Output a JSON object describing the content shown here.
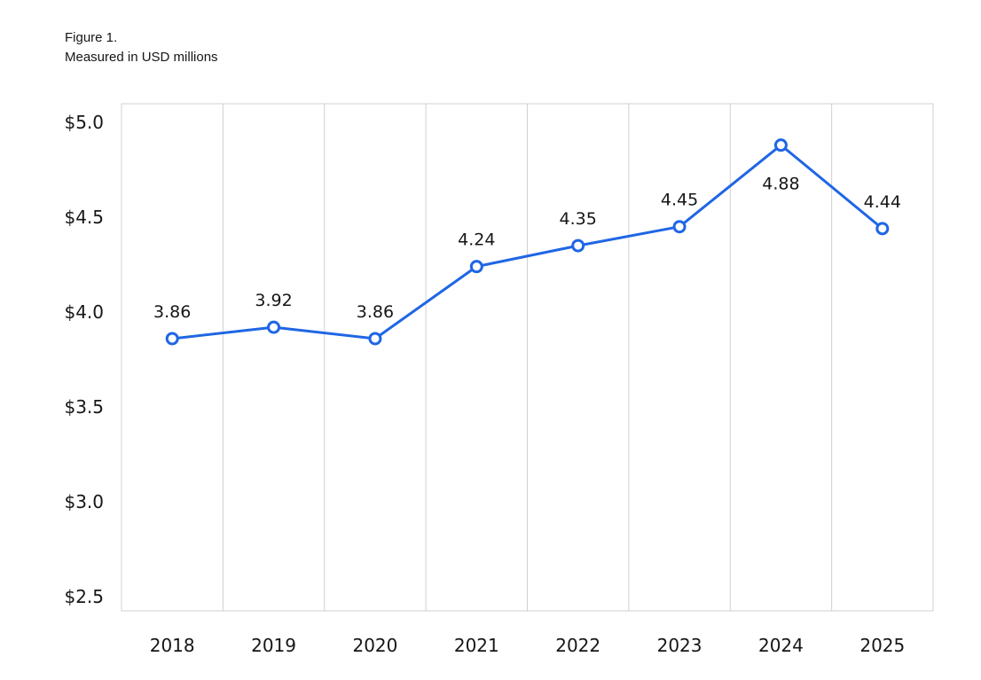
{
  "caption": {
    "figure": "Figure 1.",
    "note": "Measured in USD millions"
  },
  "colors": {
    "line": "#1f66e5",
    "grid": "#d0d0d0",
    "marker_fill": "#ffffff"
  },
  "chart_data": {
    "type": "line",
    "title": "",
    "xlabel": "",
    "ylabel": "",
    "categories": [
      "2018",
      "2019",
      "2020",
      "2021",
      "2022",
      "2023",
      "2024",
      "2025"
    ],
    "series": [
      {
        "values": [
          3.86,
          3.92,
          3.86,
          4.24,
          4.35,
          4.45,
          4.88,
          4.44
        ],
        "labels": [
          "3.86",
          "3.92",
          "3.86",
          "4.24",
          "4.35",
          "4.45",
          "4.88",
          "4.44"
        ]
      }
    ],
    "ylim": [
      2.5,
      5.0
    ],
    "yticks": [
      2.5,
      3.0,
      3.5,
      4.0,
      4.5,
      5.0
    ],
    "ytick_labels": [
      "$2.5",
      "$3.0",
      "$3.5",
      "$4.0",
      "$4.5",
      "$5.0"
    ],
    "grid": "vertical",
    "legend": "none"
  }
}
